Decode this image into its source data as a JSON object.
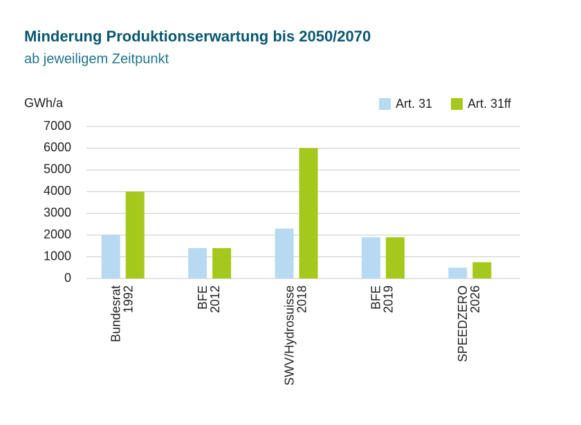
{
  "chart_data": {
    "type": "bar",
    "title": "Minderung Produktionserwartung bis 2050/2070",
    "subtitle": "ab jeweiligem Zeitpunkt",
    "y_label": "GWh/a",
    "categories": [
      [
        "Bundesrat",
        "1992"
      ],
      [
        "BFE",
        "2012"
      ],
      [
        "SWV/Hydrosuisse",
        "2018"
      ],
      [
        "BFE",
        "2019"
      ],
      [
        "SPEEDZERO",
        "2026"
      ]
    ],
    "series": [
      {
        "name": "Art. 31",
        "color": "#b8d9f2",
        "values": [
          2000,
          1400,
          2300,
          1900,
          500
        ]
      },
      {
        "name": "Art. 31ff",
        "color": "#a5c81c",
        "values": [
          4000,
          1400,
          6000,
          1900,
          750
        ]
      }
    ],
    "ylim": [
      0,
      7000
    ],
    "yticks": [
      0,
      1000,
      2000,
      3000,
      4000,
      5000,
      6000,
      7000
    ],
    "grid": true,
    "legend": "top-right"
  }
}
